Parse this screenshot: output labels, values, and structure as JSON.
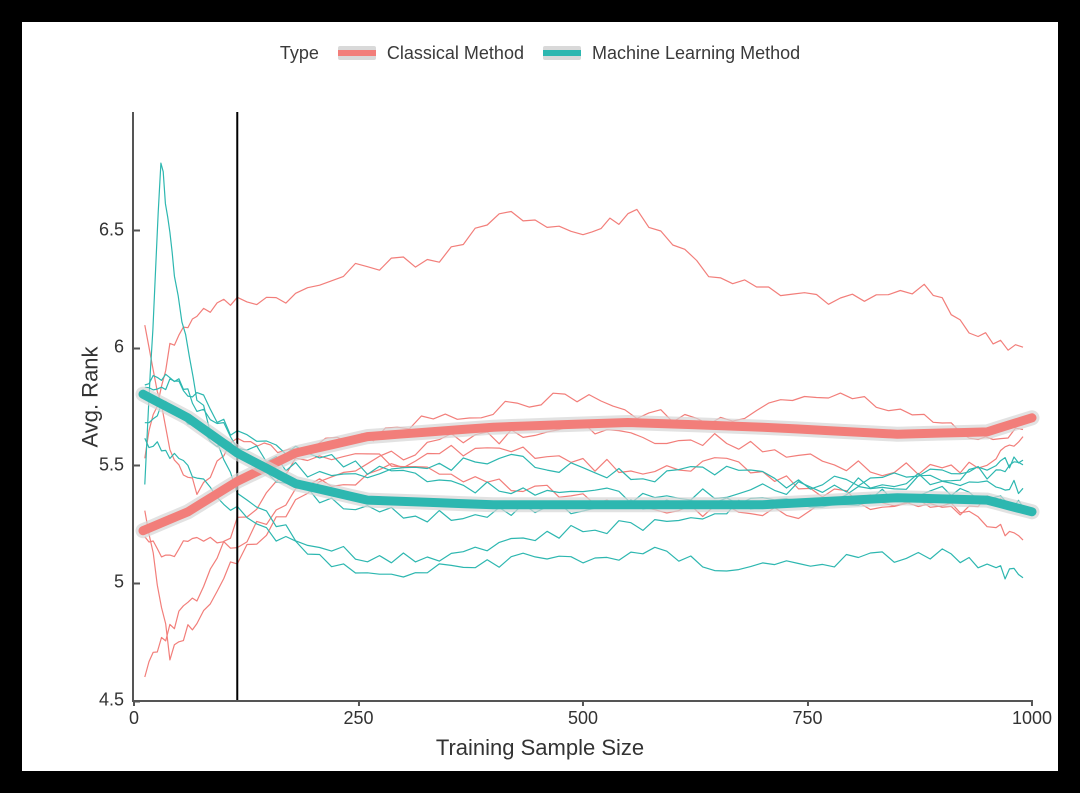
{
  "chart": {
    "type": "line",
    "background_color": "#ffffff",
    "panel_border_color": "#555555",
    "xlabel": "Training Sample Size",
    "ylabel": "Avg. Rank",
    "label_fontsize": 22,
    "tick_fontsize": 18,
    "xlim": [
      0,
      1000
    ],
    "ylim": [
      4.5,
      7.0
    ],
    "xticks": [
      0,
      250,
      500,
      750,
      1000
    ],
    "yticks": [
      4.5,
      5.0,
      5.5,
      6.0,
      6.5
    ],
    "vline_x": 115,
    "vline_color": "#000000",
    "vline_width": 2,
    "legend": {
      "title": "Type",
      "items": [
        {
          "label": "Classical Method",
          "color": "#f27e7a"
        },
        {
          "label": "Machine Learning Method",
          "color": "#2db7b0"
        }
      ],
      "key_bg": "#d9d9d9",
      "fontsize": 18
    },
    "smooth_line_width": 9,
    "smooth_ribbon_color": "#d5d5d5",
    "thin_line_width": 1.2,
    "smooth_series": [
      {
        "name": "classical_smooth",
        "color": "#f27e7a",
        "x": [
          10,
          60,
          115,
          180,
          260,
          400,
          550,
          700,
          850,
          950,
          1000
        ],
        "y": [
          5.22,
          5.3,
          5.43,
          5.55,
          5.62,
          5.66,
          5.68,
          5.66,
          5.63,
          5.64,
          5.7
        ]
      },
      {
        "name": "ml_smooth",
        "color": "#2db7b0",
        "x": [
          10,
          60,
          115,
          180,
          260,
          400,
          550,
          700,
          850,
          950,
          1000
        ],
        "y": [
          5.8,
          5.7,
          5.55,
          5.42,
          5.35,
          5.33,
          5.33,
          5.33,
          5.36,
          5.35,
          5.3
        ]
      }
    ],
    "thin_series": [
      {
        "name": "classical_1",
        "color": "#f27e7a",
        "x": [
          12,
          40,
          70,
          115,
          180,
          260,
          340,
          420,
          500,
          560,
          640,
          720,
          800,
          880,
          940,
          990
        ],
        "y": [
          5.55,
          6.0,
          6.15,
          6.2,
          6.22,
          6.35,
          6.38,
          6.58,
          6.48,
          6.58,
          6.32,
          6.22,
          6.2,
          6.25,
          6.05,
          6.0
        ]
      },
      {
        "name": "classical_2",
        "color": "#f27e7a",
        "x": [
          12,
          40,
          70,
          115,
          160,
          240,
          320,
          400,
          480,
          560,
          640,
          720,
          800,
          880,
          940,
          990
        ],
        "y": [
          6.1,
          5.55,
          5.4,
          5.6,
          5.58,
          5.6,
          5.68,
          5.73,
          5.8,
          5.72,
          5.68,
          5.77,
          5.8,
          5.72,
          5.6,
          5.65
        ]
      },
      {
        "name": "classical_3",
        "color": "#f27e7a",
        "x": [
          12,
          40,
          70,
          115,
          180,
          260,
          340,
          420,
          500,
          580,
          660,
          740,
          820,
          900,
          960,
          990
        ],
        "y": [
          5.2,
          5.1,
          5.2,
          5.15,
          5.4,
          5.45,
          5.55,
          5.58,
          5.5,
          5.48,
          5.52,
          5.42,
          5.33,
          5.35,
          5.25,
          5.18
        ]
      },
      {
        "name": "classical_4",
        "color": "#f27e7a",
        "x": [
          12,
          40,
          70,
          115,
          180,
          260,
          340,
          420,
          500,
          580,
          660,
          740,
          820,
          900,
          960,
          990
        ],
        "y": [
          4.62,
          4.8,
          4.95,
          5.25,
          5.5,
          5.55,
          5.45,
          5.42,
          5.36,
          5.32,
          5.3,
          5.3,
          5.35,
          5.3,
          5.35,
          5.32
        ]
      },
      {
        "name": "classical_5",
        "color": "#f27e7a",
        "x": [
          12,
          40,
          70,
          115,
          180,
          260,
          340,
          420,
          500,
          580,
          660,
          740,
          820,
          900,
          960,
          990
        ],
        "y": [
          5.3,
          4.7,
          4.85,
          5.1,
          5.35,
          5.5,
          5.6,
          5.62,
          5.65,
          5.62,
          5.6,
          5.55,
          5.48,
          5.48,
          5.52,
          5.62
        ]
      },
      {
        "name": "ml_1",
        "color": "#2db7b0",
        "x": [
          12,
          30,
          45,
          70,
          115,
          180,
          260,
          340,
          420,
          500,
          580,
          660,
          740,
          820,
          900,
          960,
          990
        ],
        "y": [
          5.4,
          6.8,
          6.3,
          5.8,
          5.4,
          5.2,
          5.1,
          5.12,
          5.18,
          5.22,
          5.25,
          5.32,
          5.35,
          5.4,
          5.44,
          5.5,
          5.52
        ]
      },
      {
        "name": "ml_2",
        "color": "#2db7b0",
        "x": [
          12,
          40,
          70,
          115,
          180,
          260,
          340,
          420,
          500,
          580,
          660,
          740,
          820,
          900,
          960,
          990
        ],
        "y": [
          5.85,
          5.9,
          5.75,
          5.6,
          5.48,
          5.45,
          5.5,
          5.52,
          5.48,
          5.45,
          5.48,
          5.42,
          5.44,
          5.48,
          5.46,
          5.5
        ]
      },
      {
        "name": "ml_3",
        "color": "#2db7b0",
        "x": [
          12,
          40,
          70,
          115,
          180,
          260,
          340,
          420,
          500,
          580,
          660,
          740,
          820,
          900,
          960,
          990
        ],
        "y": [
          5.7,
          5.75,
          5.65,
          5.55,
          5.4,
          5.3,
          5.28,
          5.3,
          5.32,
          5.34,
          5.36,
          5.34,
          5.36,
          5.4,
          5.36,
          5.32
        ]
      },
      {
        "name": "ml_4",
        "color": "#2db7b0",
        "x": [
          12,
          40,
          70,
          115,
          180,
          260,
          340,
          420,
          500,
          580,
          660,
          740,
          820,
          900,
          960,
          990
        ],
        "y": [
          5.6,
          5.55,
          5.45,
          5.3,
          5.15,
          5.02,
          5.05,
          5.1,
          5.1,
          5.12,
          5.06,
          5.08,
          5.1,
          5.12,
          5.05,
          5.02
        ]
      },
      {
        "name": "ml_5",
        "color": "#2db7b0",
        "x": [
          12,
          40,
          70,
          115,
          180,
          260,
          340,
          420,
          500,
          580,
          660,
          740,
          820,
          900,
          960,
          990
        ],
        "y": [
          5.8,
          5.85,
          5.8,
          5.62,
          5.55,
          5.48,
          5.42,
          5.4,
          5.38,
          5.36,
          5.38,
          5.4,
          5.42,
          5.45,
          5.42,
          5.4
        ]
      }
    ]
  }
}
